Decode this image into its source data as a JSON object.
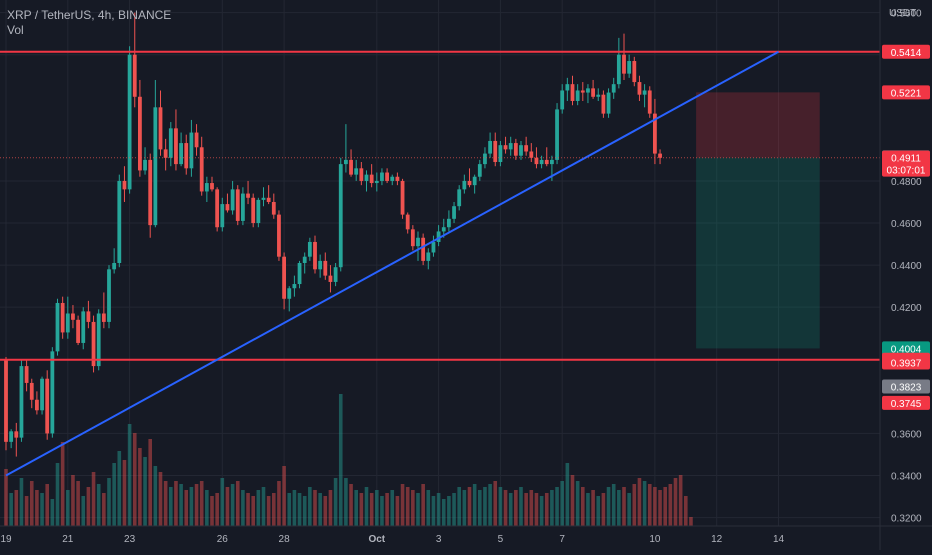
{
  "header": {
    "symbol_line": "XRP / TetherUS, 4h, BINANCE",
    "volume_label": "Vol"
  },
  "colors": {
    "background": "#161a25",
    "grid": "#232733",
    "axis_text": "#b2b5be",
    "up": "#26a69a",
    "down": "#ef5350",
    "level_line": "#f23645",
    "trend_line": "#2962ff",
    "stop_zone": "#f23645",
    "target_zone": "#089981",
    "current_tag": "#787b86"
  },
  "chart_data": {
    "type": "candlestick",
    "title": "XRP / TetherUS, 4h, BINANCE",
    "yaxis": {
      "unit": "USDT",
      "ticks": [
        "0.5600",
        "0.5400",
        "0.4800",
        "0.4600",
        "0.4400",
        "0.4200",
        "0.3600",
        "0.3400",
        "0.3200"
      ],
      "range": [
        0.316,
        0.566
      ]
    },
    "xaxis": {
      "ticks": [
        {
          "label": "19",
          "bar": 0
        },
        {
          "label": "21",
          "bar": 12
        },
        {
          "label": "23",
          "bar": 24
        },
        {
          "label": "26",
          "bar": 42
        },
        {
          "label": "28",
          "bar": 54
        },
        {
          "label": "Oct",
          "bar": 72
        },
        {
          "label": "3",
          "bar": 84
        },
        {
          "label": "5",
          "bar": 96
        },
        {
          "label": "7",
          "bar": 108
        },
        {
          "label": "10",
          "bar": 126
        },
        {
          "label": "12",
          "bar": 138
        },
        {
          "label": "14",
          "bar": 150
        }
      ]
    },
    "price_tags": [
      {
        "label": "0.5414",
        "value": 0.5414,
        "color": "#f23645"
      },
      {
        "label": "0.5221",
        "value": 0.5221,
        "color": "#f23645"
      },
      {
        "label": "0.4912",
        "value": 0.4912,
        "color": "#787b86"
      },
      {
        "label": "0.4911",
        "value": 0.4911,
        "color": "#f23645",
        "sub": "03:07:01"
      },
      {
        "label": "0.4004",
        "value": 0.4004,
        "color": "#089981"
      },
      {
        "label": "0.3950",
        "value": 0.395,
        "color": "#f23645"
      },
      {
        "label": "0.3937",
        "value": 0.3937,
        "color": "#f23645"
      },
      {
        "label": "0.3823",
        "value": 0.3823,
        "color": "#787b86"
      },
      {
        "label": "0.3745",
        "value": 0.3745,
        "color": "#f23645"
      }
    ],
    "horizontal_levels": [
      0.5414,
      0.395
    ],
    "trend_line": {
      "from": {
        "bar": 0,
        "price": 0.34
      },
      "to": {
        "bar": 150,
        "price": 0.5414
      }
    },
    "position": {
      "entry": 0.4911,
      "stop": 0.5221,
      "target": 0.4004,
      "from_bar": 134,
      "to_bar": 158
    },
    "candles": [
      [
        0.395,
        0.3963,
        0.352,
        0.356
      ],
      [
        0.356,
        0.362,
        0.353,
        0.361
      ],
      [
        0.361,
        0.365,
        0.349,
        0.358
      ],
      [
        0.358,
        0.395,
        0.356,
        0.392
      ],
      [
        0.392,
        0.395,
        0.38,
        0.384
      ],
      [
        0.384,
        0.386,
        0.372,
        0.376
      ],
      [
        0.376,
        0.38,
        0.369,
        0.371
      ],
      [
        0.371,
        0.387,
        0.369,
        0.386
      ],
      [
        0.386,
        0.39,
        0.357,
        0.36
      ],
      [
        0.36,
        0.401,
        0.358,
        0.399
      ],
      [
        0.399,
        0.424,
        0.397,
        0.422
      ],
      [
        0.422,
        0.425,
        0.405,
        0.408
      ],
      [
        0.408,
        0.425,
        0.405,
        0.417
      ],
      [
        0.417,
        0.421,
        0.41,
        0.414
      ],
      [
        0.414,
        0.416,
        0.402,
        0.403
      ],
      [
        0.403,
        0.42,
        0.4,
        0.418
      ],
      [
        0.418,
        0.423,
        0.41,
        0.413
      ],
      [
        0.413,
        0.416,
        0.389,
        0.392
      ],
      [
        0.392,
        0.419,
        0.39,
        0.417
      ],
      [
        0.417,
        0.427,
        0.41,
        0.413
      ],
      [
        0.413,
        0.44,
        0.41,
        0.438
      ],
      [
        0.438,
        0.448,
        0.436,
        0.441
      ],
      [
        0.441,
        0.483,
        0.439,
        0.48
      ],
      [
        0.48,
        0.487,
        0.47,
        0.476
      ],
      [
        0.476,
        0.544,
        0.474,
        0.54
      ],
      [
        0.54,
        0.56,
        0.515,
        0.52
      ],
      [
        0.52,
        0.528,
        0.482,
        0.485
      ],
      [
        0.485,
        0.496,
        0.483,
        0.49
      ],
      [
        0.49,
        0.493,
        0.453,
        0.459
      ],
      [
        0.459,
        0.528,
        0.458,
        0.515
      ],
      [
        0.515,
        0.523,
        0.492,
        0.495
      ],
      [
        0.495,
        0.5,
        0.485,
        0.491
      ],
      [
        0.491,
        0.508,
        0.487,
        0.505
      ],
      [
        0.505,
        0.514,
        0.485,
        0.488
      ],
      [
        0.488,
        0.503,
        0.487,
        0.498
      ],
      [
        0.498,
        0.502,
        0.483,
        0.486
      ],
      [
        0.486,
        0.509,
        0.482,
        0.503
      ],
      [
        0.503,
        0.507,
        0.492,
        0.496
      ],
      [
        0.496,
        0.501,
        0.473,
        0.475
      ],
      [
        0.475,
        0.482,
        0.47,
        0.479
      ],
      [
        0.479,
        0.482,
        0.475,
        0.476
      ],
      [
        0.476,
        0.477,
        0.456,
        0.458
      ],
      [
        0.458,
        0.472,
        0.456,
        0.469
      ],
      [
        0.469,
        0.474,
        0.465,
        0.466
      ],
      [
        0.466,
        0.48,
        0.464,
        0.476
      ],
      [
        0.476,
        0.478,
        0.459,
        0.461
      ],
      [
        0.461,
        0.477,
        0.459,
        0.474
      ],
      [
        0.474,
        0.48,
        0.469,
        0.472
      ],
      [
        0.472,
        0.474,
        0.458,
        0.46
      ],
      [
        0.46,
        0.472,
        0.458,
        0.471
      ],
      [
        0.471,
        0.477,
        0.468,
        0.472
      ],
      [
        0.472,
        0.478,
        0.469,
        0.47
      ],
      [
        0.47,
        0.474,
        0.462,
        0.464
      ],
      [
        0.464,
        0.466,
        0.442,
        0.444
      ],
      [
        0.444,
        0.446,
        0.419,
        0.424
      ],
      [
        0.424,
        0.43,
        0.418,
        0.429
      ],
      [
        0.429,
        0.435,
        0.425,
        0.431
      ],
      [
        0.431,
        0.442,
        0.429,
        0.441
      ],
      [
        0.441,
        0.446,
        0.436,
        0.444
      ],
      [
        0.444,
        0.453,
        0.442,
        0.451
      ],
      [
        0.451,
        0.454,
        0.436,
        0.438
      ],
      [
        0.438,
        0.445,
        0.434,
        0.442
      ],
      [
        0.442,
        0.446,
        0.433,
        0.435
      ],
      [
        0.435,
        0.44,
        0.427,
        0.432
      ],
      [
        0.432,
        0.441,
        0.43,
        0.439
      ],
      [
        0.439,
        0.491,
        0.437,
        0.488
      ],
      [
        0.488,
        0.507,
        0.484,
        0.49
      ],
      [
        0.49,
        0.495,
        0.482,
        0.483
      ],
      [
        0.483,
        0.49,
        0.48,
        0.486
      ],
      [
        0.486,
        0.489,
        0.478,
        0.48
      ],
      [
        0.48,
        0.485,
        0.475,
        0.483
      ],
      [
        0.483,
        0.488,
        0.477,
        0.479
      ],
      [
        0.479,
        0.484,
        0.475,
        0.48
      ],
      [
        0.48,
        0.486,
        0.478,
        0.484
      ],
      [
        0.484,
        0.486,
        0.479,
        0.48
      ],
      [
        0.48,
        0.483,
        0.478,
        0.482
      ],
      [
        0.482,
        0.484,
        0.478,
        0.48
      ],
      [
        0.48,
        0.481,
        0.462,
        0.464
      ],
      [
        0.464,
        0.465,
        0.455,
        0.457
      ],
      [
        0.457,
        0.459,
        0.447,
        0.449
      ],
      [
        0.449,
        0.456,
        0.442,
        0.453
      ],
      [
        0.453,
        0.455,
        0.44,
        0.442
      ],
      [
        0.442,
        0.448,
        0.438,
        0.446
      ],
      [
        0.446,
        0.454,
        0.444,
        0.451
      ],
      [
        0.451,
        0.459,
        0.449,
        0.456
      ],
      [
        0.456,
        0.462,
        0.453,
        0.458
      ],
      [
        0.458,
        0.466,
        0.456,
        0.462
      ],
      [
        0.462,
        0.47,
        0.46,
        0.468
      ],
      [
        0.468,
        0.478,
        0.466,
        0.476
      ],
      [
        0.476,
        0.483,
        0.474,
        0.48
      ],
      [
        0.48,
        0.486,
        0.477,
        0.478
      ],
      [
        0.478,
        0.483,
        0.474,
        0.482
      ],
      [
        0.482,
        0.49,
        0.48,
        0.488
      ],
      [
        0.488,
        0.496,
        0.486,
        0.493
      ],
      [
        0.493,
        0.503,
        0.491,
        0.499
      ],
      [
        0.499,
        0.503,
        0.487,
        0.489
      ],
      [
        0.489,
        0.499,
        0.487,
        0.497
      ],
      [
        0.497,
        0.501,
        0.493,
        0.495
      ],
      [
        0.495,
        0.501,
        0.492,
        0.498
      ],
      [
        0.498,
        0.5,
        0.49,
        0.492
      ],
      [
        0.492,
        0.499,
        0.49,
        0.497
      ],
      [
        0.497,
        0.501,
        0.492,
        0.494
      ],
      [
        0.494,
        0.498,
        0.489,
        0.491
      ],
      [
        0.491,
        0.496,
        0.486,
        0.488
      ],
      [
        0.488,
        0.492,
        0.486,
        0.49
      ],
      [
        0.49,
        0.496,
        0.487,
        0.488
      ],
      [
        0.488,
        0.492,
        0.48,
        0.49
      ],
      [
        0.49,
        0.517,
        0.488,
        0.514
      ],
      [
        0.514,
        0.526,
        0.512,
        0.523
      ],
      [
        0.523,
        0.529,
        0.518,
        0.526
      ],
      [
        0.526,
        0.53,
        0.516,
        0.518
      ],
      [
        0.518,
        0.526,
        0.516,
        0.523
      ],
      [
        0.523,
        0.527,
        0.518,
        0.522
      ],
      [
        0.522,
        0.526,
        0.517,
        0.524
      ],
      [
        0.524,
        0.528,
        0.519,
        0.52
      ],
      [
        0.52,
        0.524,
        0.518,
        0.521
      ],
      [
        0.521,
        0.523,
        0.51,
        0.512
      ],
      [
        0.512,
        0.524,
        0.51,
        0.522
      ],
      [
        0.522,
        0.529,
        0.519,
        0.526
      ],
      [
        0.526,
        0.548,
        0.524,
        0.54
      ],
      [
        0.54,
        0.55,
        0.528,
        0.531
      ],
      [
        0.531,
        0.54,
        0.529,
        0.537
      ],
      [
        0.537,
        0.539,
        0.525,
        0.527
      ],
      [
        0.527,
        0.53,
        0.518,
        0.521
      ],
      [
        0.521,
        0.526,
        0.515,
        0.523
      ],
      [
        0.523,
        0.525,
        0.51,
        0.512
      ],
      [
        0.512,
        0.519,
        0.488,
        0.493
      ],
      [
        0.493,
        0.495,
        0.488,
        0.491
      ]
    ],
    "volume": [
      0.38,
      0.22,
      0.24,
      0.32,
      0.2,
      0.3,
      0.24,
      0.22,
      0.28,
      0.18,
      0.42,
      0.56,
      0.24,
      0.34,
      0.3,
      0.2,
      0.26,
      0.36,
      0.28,
      0.22,
      0.32,
      0.42,
      0.5,
      0.44,
      0.68,
      0.62,
      0.52,
      0.46,
      0.58,
      0.4,
      0.36,
      0.3,
      0.26,
      0.3,
      0.28,
      0.24,
      0.26,
      0.28,
      0.3,
      0.24,
      0.2,
      0.22,
      0.32,
      0.26,
      0.28,
      0.3,
      0.24,
      0.22,
      0.2,
      0.24,
      0.26,
      0.2,
      0.22,
      0.3,
      0.4,
      0.22,
      0.24,
      0.22,
      0.2,
      0.26,
      0.24,
      0.22,
      0.2,
      0.24,
      0.32,
      0.88,
      0.32,
      0.28,
      0.24,
      0.22,
      0.26,
      0.22,
      0.24,
      0.2,
      0.22,
      0.24,
      0.2,
      0.28,
      0.26,
      0.24,
      0.22,
      0.28,
      0.24,
      0.2,
      0.22,
      0.18,
      0.2,
      0.22,
      0.26,
      0.24,
      0.26,
      0.28,
      0.24,
      0.26,
      0.28,
      0.3,
      0.26,
      0.24,
      0.22,
      0.24,
      0.26,
      0.22,
      0.24,
      0.22,
      0.2,
      0.22,
      0.24,
      0.26,
      0.3,
      0.42,
      0.34,
      0.3,
      0.26,
      0.22,
      0.24,
      0.2,
      0.22,
      0.26,
      0.28,
      0.24,
      0.26,
      0.22,
      0.28,
      0.32,
      0.3,
      0.28,
      0.26,
      0.24,
      0.26,
      0.28,
      0.32,
      0.34,
      0.2,
      0.06
    ]
  }
}
